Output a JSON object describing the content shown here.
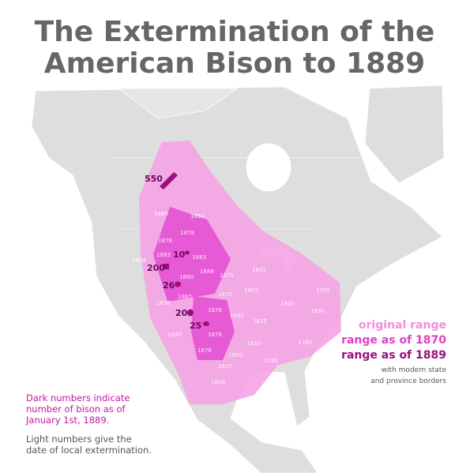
{
  "title_lines": [
    "The Extermination of the",
    "American Bison to 1889"
  ],
  "legend": {
    "original_range": "original range",
    "range_1870": "range as of 1870",
    "range_1889": "range as of 1889",
    "note_lines": [
      "with modern state",
      "and province borders"
    ]
  },
  "notes": {
    "dark": [
      "Dark numbers indicate",
      "number of bison as of",
      "January 1st, 1889."
    ],
    "light": [
      "Light numbers give the",
      "date of local extermination."
    ]
  },
  "herd_counts": [
    550,
    10,
    200,
    26,
    20,
    25
  ],
  "extermination_dates": [
    1880,
    1850,
    1878,
    1878,
    1838,
    1883,
    1883,
    1886,
    1880,
    1870,
    1832,
    1867,
    1870,
    1825,
    1838,
    1876,
    1840,
    1825,
    1840,
    1795,
    1830,
    1840,
    1876,
    1820,
    1760,
    1876,
    1850,
    1720,
    1837,
    1828
  ]
}
